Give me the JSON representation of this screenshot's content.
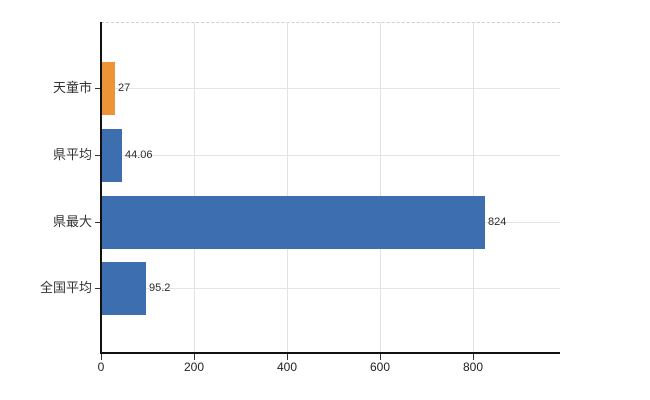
{
  "chart_data": {
    "type": "bar",
    "orientation": "horizontal",
    "title": "",
    "xlabel": "",
    "ylabel": "",
    "categories": [
      "天童市",
      "県平均",
      "県最大",
      "全国平均"
    ],
    "values": [
      27,
      44.06,
      824,
      95.2
    ],
    "value_labels": [
      "27",
      "44.06",
      "824",
      "95.2"
    ],
    "bar_colors": [
      "#ed9439",
      "#3d6fb0",
      "#3d6fb0",
      "#3d6fb0"
    ],
    "xlim": [
      0,
      987
    ],
    "xticks": [
      0,
      200,
      400,
      600,
      800
    ],
    "xtick_labels": [
      "0",
      "200",
      "400",
      "600",
      "800"
    ],
    "grid": true,
    "legend": false
  },
  "colors": {
    "accent_orange": "#ed9439",
    "accent_blue": "#3d6fb0",
    "gridline": "#e2e2e2",
    "plot_top_border": "#cfcfcf",
    "axis": "#111111",
    "text": "#333333"
  }
}
